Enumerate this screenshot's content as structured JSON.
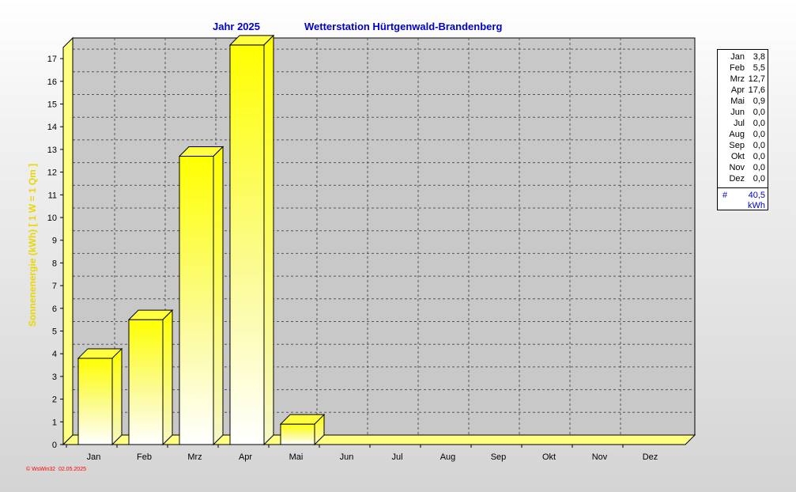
{
  "header": {
    "year_label": "Jahr  2025",
    "station_label": "Wetterstation Hürtgenwald-Brandenberg"
  },
  "chart_data": {
    "type": "bar",
    "categories": [
      "Jan",
      "Feb",
      "Mrz",
      "Apr",
      "Mai",
      "Jun",
      "Jul",
      "Aug",
      "Sep",
      "Okt",
      "Nov",
      "Dez"
    ],
    "values": [
      3.8,
      5.5,
      12.7,
      17.6,
      0.9,
      0.0,
      0.0,
      0.0,
      0.0,
      0.0,
      0.0,
      0.0
    ],
    "ylabel": "Sonnenenergie (kWh)   [ 1 W  =  1 Qm ]",
    "yticks": [
      0,
      1,
      2,
      3,
      4,
      5,
      6,
      7,
      8,
      9,
      10,
      11,
      12,
      13,
      14,
      15,
      16,
      17
    ],
    "ylim": [
      0,
      17.7
    ],
    "grid": true,
    "style": "3d-bar",
    "bar_color": "#ffff00"
  },
  "legend": {
    "placement": "right",
    "rows": [
      {
        "month": "Jan",
        "value": "3,8"
      },
      {
        "month": "Feb",
        "value": "5,5"
      },
      {
        "month": "Mrz",
        "value": "12,7"
      },
      {
        "month": "Apr",
        "value": "17,6"
      },
      {
        "month": "Mai",
        "value": "0,9"
      },
      {
        "month": "Jun",
        "value": "0,0"
      },
      {
        "month": "Jul",
        "value": "0,0"
      },
      {
        "month": "Aug",
        "value": "0,0"
      },
      {
        "month": "Sep",
        "value": "0,0"
      },
      {
        "month": "Okt",
        "value": "0,0"
      },
      {
        "month": "Nov",
        "value": "0,0"
      },
      {
        "month": "Dez",
        "value": "0,0"
      }
    ],
    "total_symbol": "#",
    "total_value": "40,5",
    "total_unit": "kWh"
  },
  "footer": {
    "text": "© WsWin32  02.05.2025"
  },
  "colors": {
    "title": "#0000cc",
    "ylabel": "#e8d800",
    "footer": "#ff0000",
    "bar_top": "#ffff00",
    "bar_bottom": "#ffffff",
    "floor": "#ffff80"
  }
}
